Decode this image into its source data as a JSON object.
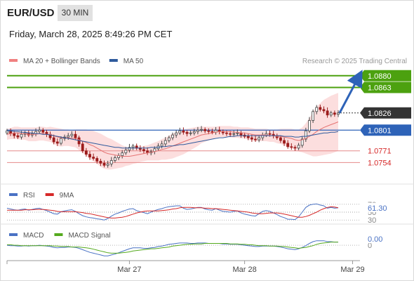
{
  "header": {
    "pair": "EUR/USD",
    "timeframe": "30 MIN",
    "datetime": "Friday, March 28, 2025 8:49:26 PM CET"
  },
  "chart_data": {
    "type": "line",
    "price_panel": {
      "legend": [
        {
          "label": "MA 20 + Bollinger Bands",
          "color": "#f08080"
        },
        {
          "label": "MA 50",
          "color": "#2e5a9c"
        }
      ],
      "watermark": "Research © 2025 Trading Central",
      "ylim": [
        1.0735,
        1.089
      ],
      "last_price": 1.0826,
      "levels": [
        {
          "label": "1.0880",
          "value": 1.088,
          "kind": "resistance"
        },
        {
          "label": "1.0863",
          "value": 1.0863,
          "kind": "resistance"
        },
        {
          "label": "1.0826",
          "value": 1.0826,
          "kind": "last"
        },
        {
          "label": "1.0801",
          "value": 1.0801,
          "kind": "pivot"
        },
        {
          "label": "1.0771",
          "value": 1.0771,
          "kind": "support"
        },
        {
          "label": "1.0754",
          "value": 1.0754,
          "kind": "support"
        }
      ],
      "close": [
        1.08,
        1.0796,
        1.0793,
        1.0791,
        1.0795,
        1.0797,
        1.0794,
        1.0796,
        1.0799,
        1.0801,
        1.0798,
        1.0795,
        1.079,
        1.0784,
        1.0782,
        1.0789,
        1.0791,
        1.0793,
        1.0795,
        1.079,
        1.0781,
        1.0771,
        1.0766,
        1.0762,
        1.076,
        1.0756,
        1.0753,
        1.075,
        1.0752,
        1.0757,
        1.0761,
        1.0764,
        1.0768,
        1.0772,
        1.0776,
        1.0778,
        1.0775,
        1.0773,
        1.0771,
        1.0768,
        1.077,
        1.0774,
        1.0778,
        1.0781,
        1.0786,
        1.079,
        1.0794,
        1.0797,
        1.08,
        1.0798,
        1.0796,
        1.0797,
        1.0799,
        1.0801,
        1.0802,
        1.08,
        1.0799,
        1.0798,
        1.0801,
        1.0799,
        1.0797,
        1.0796,
        1.0795,
        1.0796,
        1.0797,
        1.0794,
        1.0792,
        1.079,
        1.0788,
        1.0787,
        1.079,
        1.0794,
        1.0796,
        1.0795,
        1.0793,
        1.079,
        1.0786,
        1.0782,
        1.0777,
        1.0776,
        1.0775,
        1.0779,
        1.0788,
        1.08,
        1.0815,
        1.0828,
        1.0834,
        1.0831,
        1.0829,
        1.0823,
        1.0826,
        1.0824,
        1.0826
      ],
      "ma20": [
        1.0795,
        1.0796,
        1.0797,
        1.0797,
        1.0796,
        1.0796,
        1.0795,
        1.0795,
        1.0795,
        1.0796,
        1.0796,
        1.0795,
        1.0795,
        1.0793,
        1.0791,
        1.079,
        1.079,
        1.079,
        1.0789,
        1.0789,
        1.0787,
        1.0785,
        1.0783,
        1.078,
        1.0778,
        1.0775,
        1.0772,
        1.0769,
        1.0767,
        1.0766,
        1.0765,
        1.0764,
        1.0763,
        1.0763,
        1.0763,
        1.0764,
        1.0765,
        1.0766,
        1.0767,
        1.0768,
        1.0769,
        1.077,
        1.0771,
        1.0773,
        1.0774,
        1.0776,
        1.0778,
        1.078,
        1.0782,
        1.0784,
        1.0786,
        1.0788,
        1.079,
        1.0792,
        1.0794,
        1.0795,
        1.0796,
        1.0797,
        1.0798,
        1.0799,
        1.0799,
        1.0799,
        1.0799,
        1.0798,
        1.0798,
        1.0797,
        1.0797,
        1.0796,
        1.0795,
        1.0794,
        1.0794,
        1.0794,
        1.0794,
        1.0793,
        1.0793,
        1.0792,
        1.0792,
        1.0791,
        1.079,
        1.0789,
        1.0787,
        1.0786,
        1.0787,
        1.0789,
        1.0792,
        1.0795,
        1.0799,
        1.0802,
        1.0805,
        1.0807,
        1.0809,
        1.0811,
        1.0813
      ],
      "bb_width": [
        0.0008,
        0.0008,
        0.0009,
        0.0009,
        0.0009,
        0.0009,
        0.001,
        0.001,
        0.001,
        0.001,
        0.001,
        0.001,
        0.0011,
        0.0012,
        0.0013,
        0.0013,
        0.0012,
        0.0012,
        0.0012,
        0.0013,
        0.0015,
        0.0017,
        0.0019,
        0.0021,
        0.0022,
        0.0023,
        0.0024,
        0.0024,
        0.0023,
        0.0022,
        0.002,
        0.0018,
        0.0016,
        0.0014,
        0.0013,
        0.0012,
        0.0012,
        0.0011,
        0.0011,
        0.0011,
        0.0012,
        0.0013,
        0.0014,
        0.0015,
        0.0016,
        0.0017,
        0.0018,
        0.0018,
        0.0018,
        0.0018,
        0.0017,
        0.0016,
        0.0015,
        0.0014,
        0.0012,
        0.0011,
        0.001,
        0.0009,
        0.0008,
        0.0008,
        0.0008,
        0.0008,
        0.0008,
        0.0008,
        0.0008,
        0.0008,
        0.0008,
        0.0009,
        0.0009,
        0.0009,
        0.0009,
        0.0009,
        0.0009,
        0.0009,
        0.0009,
        0.001,
        0.0011,
        0.0012,
        0.0013,
        0.0014,
        0.0015,
        0.0016,
        0.0018,
        0.0022,
        0.0027,
        0.0032,
        0.0036,
        0.0038,
        0.004,
        0.0041,
        0.0042,
        0.0042,
        0.0042
      ],
      "ma50": [
        1.08,
        1.08,
        1.0799,
        1.0799,
        1.0798,
        1.0798,
        1.0797,
        1.0797,
        1.0796,
        1.0796,
        1.0795,
        1.0795,
        1.0794,
        1.0793,
        1.0792,
        1.0791,
        1.079,
        1.0789,
        1.0788,
        1.0787,
        1.0786,
        1.0785,
        1.0784,
        1.0783,
        1.0782,
        1.0781,
        1.078,
        1.0779,
        1.0778,
        1.0777,
        1.0776,
        1.0776,
        1.0775,
        1.0775,
        1.0775,
        1.0775,
        1.0775,
        1.0775,
        1.0775,
        1.0775,
        1.0776,
        1.0776,
        1.0776,
        1.0777,
        1.0777,
        1.0778,
        1.0778,
        1.0779,
        1.078,
        1.078,
        1.0781,
        1.0782,
        1.0783,
        1.0784,
        1.0785,
        1.0786,
        1.0787,
        1.0788,
        1.0789,
        1.079,
        1.079,
        1.0791,
        1.0792,
        1.0792,
        1.0793,
        1.0793,
        1.0793,
        1.0793,
        1.0793,
        1.0793,
        1.0793,
        1.0793,
        1.0793,
        1.0793,
        1.0793,
        1.0793,
        1.0793,
        1.0792,
        1.0792,
        1.0792,
        1.0791,
        1.0791,
        1.0792,
        1.0792,
        1.0793,
        1.0794,
        1.0795,
        1.0796,
        1.0797,
        1.0797,
        1.0798,
        1.0798,
        1.0799
      ],
      "forecast_arrow": {
        "from": 1.0826,
        "to": 1.088
      }
    },
    "rsi_panel": {
      "legend": [
        {
          "label": "RSI",
          "color": "#4a72c4"
        },
        {
          "label": "9MA",
          "color": "#d62828"
        }
      ],
      "ylim": [
        25,
        75
      ],
      "levels": [
        70,
        50,
        30
      ],
      "level_labels": [
        "70",
        "50",
        "30"
      ],
      "current_label": "61.30",
      "rsi": [
        60,
        58,
        56,
        55,
        57,
        58,
        55,
        57,
        59,
        60,
        57,
        54,
        50,
        46,
        45,
        51,
        53,
        55,
        56,
        52,
        46,
        41,
        38,
        36,
        35,
        33,
        32,
        30,
        34,
        40,
        45,
        48,
        52,
        55,
        58,
        59,
        54,
        51,
        49,
        46,
        50,
        54,
        57,
        59,
        62,
        64,
        65,
        66,
        66,
        60,
        57,
        58,
        60,
        62,
        62,
        58,
        56,
        55,
        59,
        55,
        52,
        51,
        50,
        52,
        53,
        48,
        45,
        43,
        41,
        40,
        46,
        52,
        54,
        52,
        48,
        44,
        39,
        36,
        32,
        32,
        31,
        38,
        50,
        62,
        68,
        70,
        71,
        68,
        66,
        60,
        62,
        60,
        61
      ],
      "ma9": [
        55,
        55,
        55,
        55,
        55,
        56,
        56,
        56,
        57,
        57,
        57,
        56,
        55,
        54,
        52,
        51,
        51,
        51,
        51,
        51,
        50,
        49,
        47,
        46,
        44,
        42,
        40,
        38,
        36,
        35,
        35,
        36,
        37,
        39,
        42,
        45,
        48,
        50,
        52,
        53,
        53,
        53,
        53,
        54,
        55,
        56,
        58,
        59,
        61,
        62,
        62,
        62,
        61,
        61,
        61,
        60,
        60,
        59,
        59,
        58,
        57,
        56,
        55,
        54,
        53,
        52,
        51,
        50,
        48,
        47,
        46,
        46,
        47,
        48,
        48,
        48,
        47,
        45,
        43,
        41,
        39,
        37,
        37,
        39,
        42,
        46,
        50,
        55,
        59,
        62,
        64,
        63,
        61
      ]
    },
    "macd_panel": {
      "legend": [
        {
          "label": "MACD",
          "color": "#4a72c4"
        },
        {
          "label": "MACD Signal",
          "color": "#55aa1e"
        }
      ],
      "ylim": [
        -0.003,
        0.0008
      ],
      "current_label": "0.00",
      "second_label": "0",
      "macd": [
        0.0,
        -0.0001,
        -0.0001,
        -0.0002,
        -0.0002,
        -0.0001,
        -0.0002,
        -0.0001,
        -0.0001,
        0.0,
        -0.0001,
        -0.0002,
        -0.0003,
        -0.0005,
        -0.0006,
        -0.0005,
        -0.0005,
        -0.0004,
        -0.0004,
        -0.0005,
        -0.0007,
        -0.001,
        -0.0013,
        -0.0016,
        -0.0018,
        -0.002,
        -0.0022,
        -0.0024,
        -0.0024,
        -0.0022,
        -0.002,
        -0.0017,
        -0.0014,
        -0.0011,
        -0.0008,
        -0.0006,
        -0.0006,
        -0.0006,
        -0.0007,
        -0.0007,
        -0.0006,
        -0.0005,
        -0.0003,
        -0.0002,
        0.0,
        0.0002,
        0.0003,
        0.0004,
        0.0005,
        0.0005,
        0.0005,
        0.0004,
        0.0004,
        0.0005,
        0.0005,
        0.0005,
        0.0004,
        0.0004,
        0.0004,
        0.0004,
        0.0003,
        0.0003,
        0.0002,
        0.0002,
        0.0002,
        0.0001,
        0.0,
        -0.0001,
        -0.0002,
        -0.0003,
        -0.0003,
        -0.0002,
        -0.0002,
        -0.0002,
        -0.0002,
        -0.0003,
        -0.0004,
        -0.0006,
        -0.0008,
        -0.0009,
        -0.001,
        -0.0008,
        -0.0005,
        -0.0001,
        0.0004,
        0.0008,
        0.001,
        0.001,
        0.001,
        0.0008,
        0.0008,
        0.0007,
        0.0007
      ],
      "signal": [
        0.0001,
        0.0001,
        0.0,
        0.0,
        -0.0001,
        -0.0001,
        -0.0001,
        -0.0001,
        -0.0001,
        -0.0001,
        -0.0001,
        -0.0001,
        -0.0001,
        -0.0002,
        -0.0002,
        -0.0003,
        -0.0003,
        -0.0003,
        -0.0004,
        -0.0004,
        -0.0004,
        -0.0005,
        -0.0006,
        -0.0007,
        -0.0009,
        -0.0011,
        -0.0013,
        -0.0015,
        -0.0017,
        -0.0018,
        -0.0018,
        -0.0018,
        -0.0017,
        -0.0016,
        -0.0015,
        -0.0013,
        -0.0012,
        -0.0011,
        -0.001,
        -0.0009,
        -0.0008,
        -0.0008,
        -0.0007,
        -0.0006,
        -0.0005,
        -0.0004,
        -0.0002,
        -0.0001,
        0.0,
        0.0001,
        0.0002,
        0.0002,
        0.0003,
        0.0003,
        0.0003,
        0.0004,
        0.0004,
        0.0004,
        0.0004,
        0.0004,
        0.0004,
        0.0004,
        0.0003,
        0.0003,
        0.0003,
        0.0002,
        0.0002,
        0.0001,
        0.0001,
        0.0,
        -0.0001,
        -0.0001,
        -0.0001,
        -0.0002,
        -0.0002,
        -0.0002,
        -0.0003,
        -0.0003,
        -0.0004,
        -0.0005,
        -0.0006,
        -0.0007,
        -0.0006,
        -0.0005,
        -0.0003,
        -0.0001,
        0.0002,
        0.0004,
        0.0005,
        0.0006,
        0.0007,
        0.0007,
        0.0007
      ]
    },
    "x_axis": {
      "ticks": [
        {
          "label": "Mar 27",
          "index": 34
        },
        {
          "label": "Mar 28",
          "index": 66
        },
        {
          "label": "Mar 29",
          "index": 96
        }
      ]
    }
  }
}
